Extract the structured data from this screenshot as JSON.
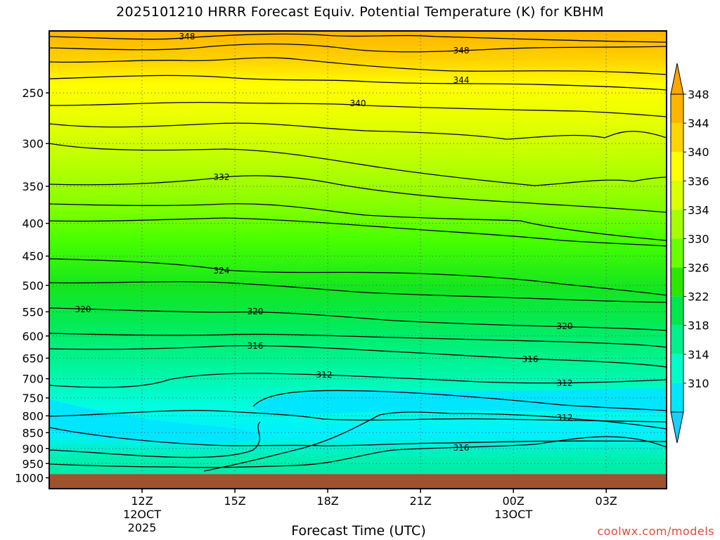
{
  "chart_data": {
    "type": "heatmap",
    "title": "2025101210 HRRR Forecast Equiv. Potential Temperature (K) for KBHM",
    "xlabel": "Forecast Time (UTC)",
    "credit": "coolwx.com/models",
    "x_ticks": [
      {
        "hour": 12,
        "label": "12Z",
        "sub1": "12OCT",
        "sub2": "2025"
      },
      {
        "hour": 15,
        "label": "15Z",
        "sub1": "",
        "sub2": ""
      },
      {
        "hour": 18,
        "label": "18Z",
        "sub1": "",
        "sub2": ""
      },
      {
        "hour": 21,
        "label": "21Z",
        "sub1": "",
        "sub2": ""
      },
      {
        "hour": 24,
        "label": "00Z",
        "sub1": "13OCT",
        "sub2": ""
      },
      {
        "hour": 27,
        "label": "03Z",
        "sub1": "",
        "sub2": ""
      }
    ],
    "x_range_hours": [
      9,
      28.95
    ],
    "y_ticks": [
      250,
      300,
      350,
      400,
      450,
      500,
      550,
      600,
      650,
      700,
      750,
      800,
      850,
      900,
      950,
      1000
    ],
    "y_range_hPa": [
      200,
      1040
    ],
    "y_scale": "log",
    "ground_top_hPa": 987,
    "colorbar": {
      "labels": [
        348,
        344,
        340,
        336,
        334,
        330,
        326,
        322,
        318,
        314,
        310
      ],
      "colors": [
        "#ffa500",
        "#ffd400",
        "#ffff00",
        "#d9ff00",
        "#a6ff00",
        "#6aff00",
        "#2ce600",
        "#00e64d",
        "#00f08c",
        "#00fcc8",
        "#00e6ff",
        "#14d2ff"
      ]
    },
    "contours": [
      {
        "value": 348,
        "label": true
      },
      {
        "value": 348,
        "label": true
      },
      {
        "value": 344,
        "label": true
      },
      {
        "value": 340,
        "label": true
      },
      {
        "value": 332,
        "label": true
      },
      {
        "value": 324,
        "label": true
      },
      {
        "value": 320,
        "label": true
      },
      {
        "value": 320,
        "label": true
      },
      {
        "value": 320,
        "label": true
      },
      {
        "value": 316,
        "label": true
      },
      {
        "value": 316,
        "label": true
      },
      {
        "value": 312,
        "label": true
      },
      {
        "value": 312,
        "label": true
      },
      {
        "value": 312,
        "label": true
      },
      {
        "value": 316,
        "label": true
      }
    ]
  }
}
